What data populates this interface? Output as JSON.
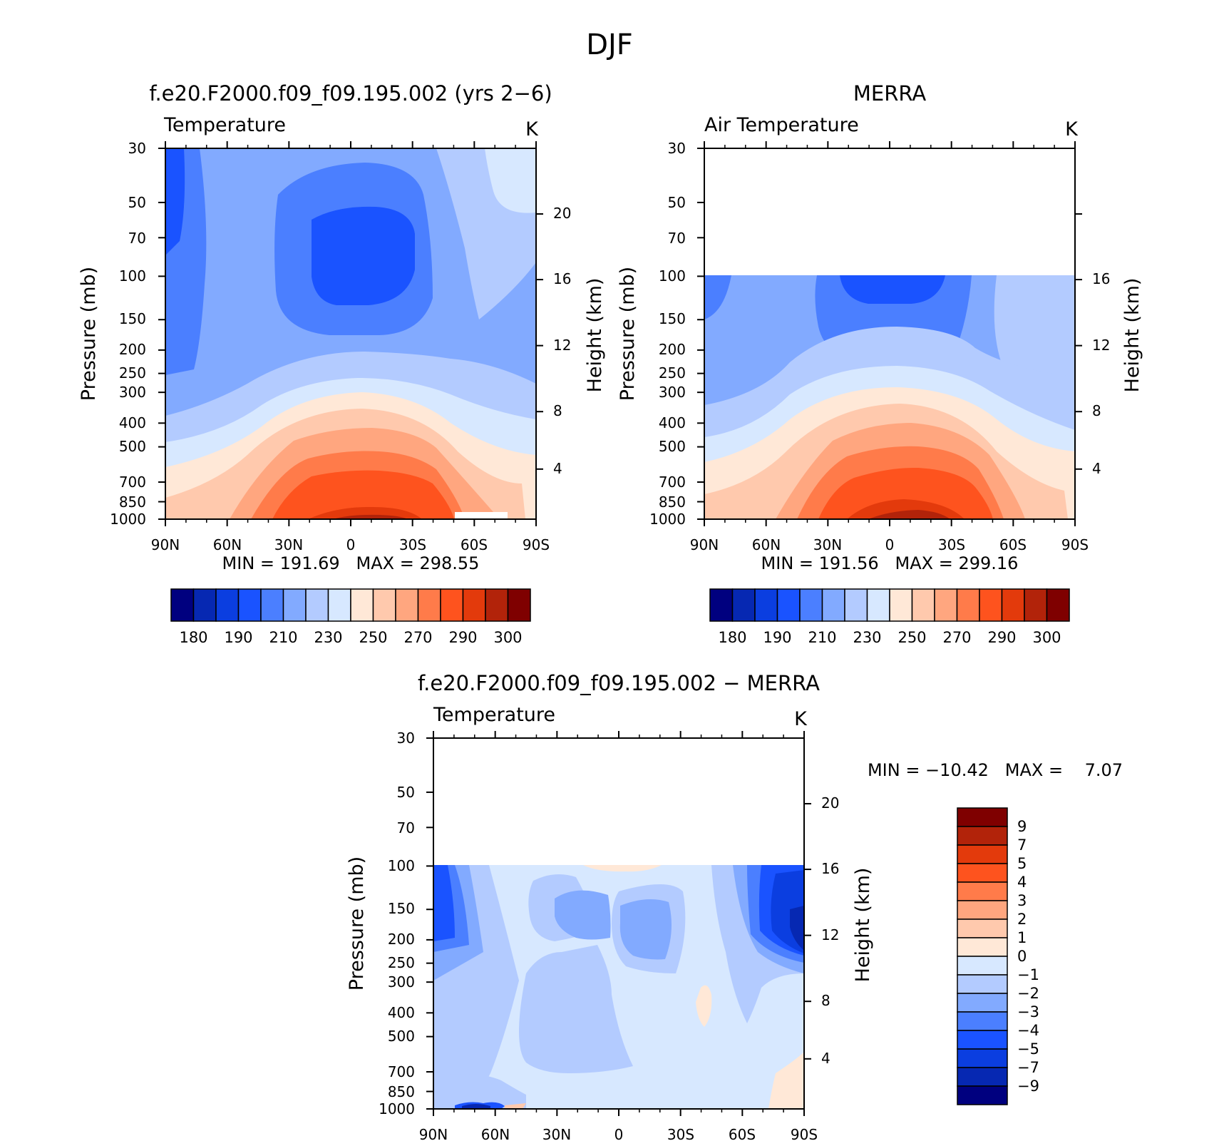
{
  "figure_title": "DJF",
  "chart_data": [
    {
      "type": "heatmap",
      "title": "f.e20.F2000.f09_f09.195.002 (yrs 2−6)",
      "variable_label": "Temperature",
      "units_label": "K",
      "xlabel": "",
      "ylabel": "Pressure (mb)",
      "ylabel_right": "Height (km)",
      "x_ticks": [
        "90N",
        "60N",
        "30N",
        "0",
        "30S",
        "60S",
        "90S"
      ],
      "y_ticks": [
        "30",
        "50",
        "70",
        "100",
        "150",
        "200",
        "250",
        "300",
        "400",
        "500",
        "700",
        "850",
        "1000"
      ],
      "y_right_ticks": [
        "20",
        "16",
        "12",
        "8",
        "4"
      ],
      "pressure_range_mb": [
        1000,
        30
      ],
      "lat_range": [
        "90N",
        "90S"
      ],
      "y_scale": "log-pressure",
      "stats_text": "MIN = 191.69   MAX = 298.55",
      "min": 191.69,
      "max": 298.55,
      "colorbar": {
        "orientation": "horizontal",
        "labels": [
          "180",
          "190",
          "210",
          "230",
          "250",
          "270",
          "290",
          "300"
        ],
        "colors": [
          "#00007f",
          "#0628b2",
          "#0b3ee0",
          "#1a53ff",
          "#4b7fff",
          "#82aaff",
          "#b3cbff",
          "#d7e8ff",
          "#ffe8d7",
          "#ffc9ad",
          "#ffa67f",
          "#ff7b4a",
          "#fe531e",
          "#e33a0c",
          "#b2230a",
          "#7f0000"
        ]
      }
    },
    {
      "type": "heatmap",
      "title": "MERRA",
      "variable_label": "Air Temperature",
      "units_label": "K",
      "xlabel": "",
      "ylabel": "Pressure (mb)",
      "ylabel_right": "Height (km)",
      "x_ticks": [
        "90N",
        "60N",
        "30N",
        "0",
        "30S",
        "60S",
        "90S"
      ],
      "y_ticks": [
        "30",
        "50",
        "70",
        "100",
        "150",
        "200",
        "250",
        "300",
        "400",
        "500",
        "700",
        "850",
        "1000"
      ],
      "y_right_ticks": [
        "16",
        "12",
        "8",
        "4"
      ],
      "pressure_range_mb": [
        1000,
        30
      ],
      "data_top_mb": 100,
      "lat_range": [
        "90N",
        "90S"
      ],
      "y_scale": "log-pressure",
      "stats_text": "MIN = 191.56   MAX = 299.16",
      "min": 191.56,
      "max": 299.16,
      "colorbar": {
        "orientation": "horizontal",
        "labels": [
          "180",
          "190",
          "210",
          "230",
          "250",
          "270",
          "290",
          "300"
        ],
        "colors": [
          "#00007f",
          "#0628b2",
          "#0b3ee0",
          "#1a53ff",
          "#4b7fff",
          "#82aaff",
          "#b3cbff",
          "#d7e8ff",
          "#ffe8d7",
          "#ffc9ad",
          "#ffa67f",
          "#ff7b4a",
          "#fe531e",
          "#e33a0c",
          "#b2230a",
          "#7f0000"
        ]
      }
    },
    {
      "type": "heatmap",
      "title": "f.e20.F2000.f09_f09.195.002 − MERRA",
      "variable_label": "Temperature",
      "units_label": "K",
      "xlabel": "",
      "ylabel": "Pressure (mb)",
      "ylabel_right": "Height (km)",
      "x_ticks": [
        "90N",
        "60N",
        "30N",
        "0",
        "30S",
        "60S",
        "90S"
      ],
      "y_ticks": [
        "30",
        "50",
        "70",
        "100",
        "150",
        "200",
        "250",
        "300",
        "400",
        "500",
        "700",
        "850",
        "1000"
      ],
      "y_right_ticks": [
        "20",
        "16",
        "12",
        "8",
        "4"
      ],
      "pressure_range_mb": [
        1000,
        30
      ],
      "data_top_mb": 100,
      "lat_range": [
        "90N",
        "90S"
      ],
      "y_scale": "log-pressure",
      "stats_text": "MIN = −10.42   MAX =    7.07",
      "min": -10.42,
      "max": 7.07,
      "colorbar": {
        "orientation": "vertical",
        "labels": [
          "9",
          "7",
          "5",
          "4",
          "3",
          "2",
          "1",
          "0",
          "−1",
          "−2",
          "−3",
          "−4",
          "−5",
          "−7",
          "−9"
        ],
        "colors": [
          "#7f0000",
          "#b2230a",
          "#e33a0c",
          "#fe531e",
          "#ff7b4a",
          "#ffa67f",
          "#ffc9ad",
          "#ffe8d7",
          "#d7e8ff",
          "#b3cbff",
          "#82aaff",
          "#4b7fff",
          "#1a53ff",
          "#0b3ee0",
          "#0628b2",
          "#00007f"
        ]
      }
    }
  ]
}
